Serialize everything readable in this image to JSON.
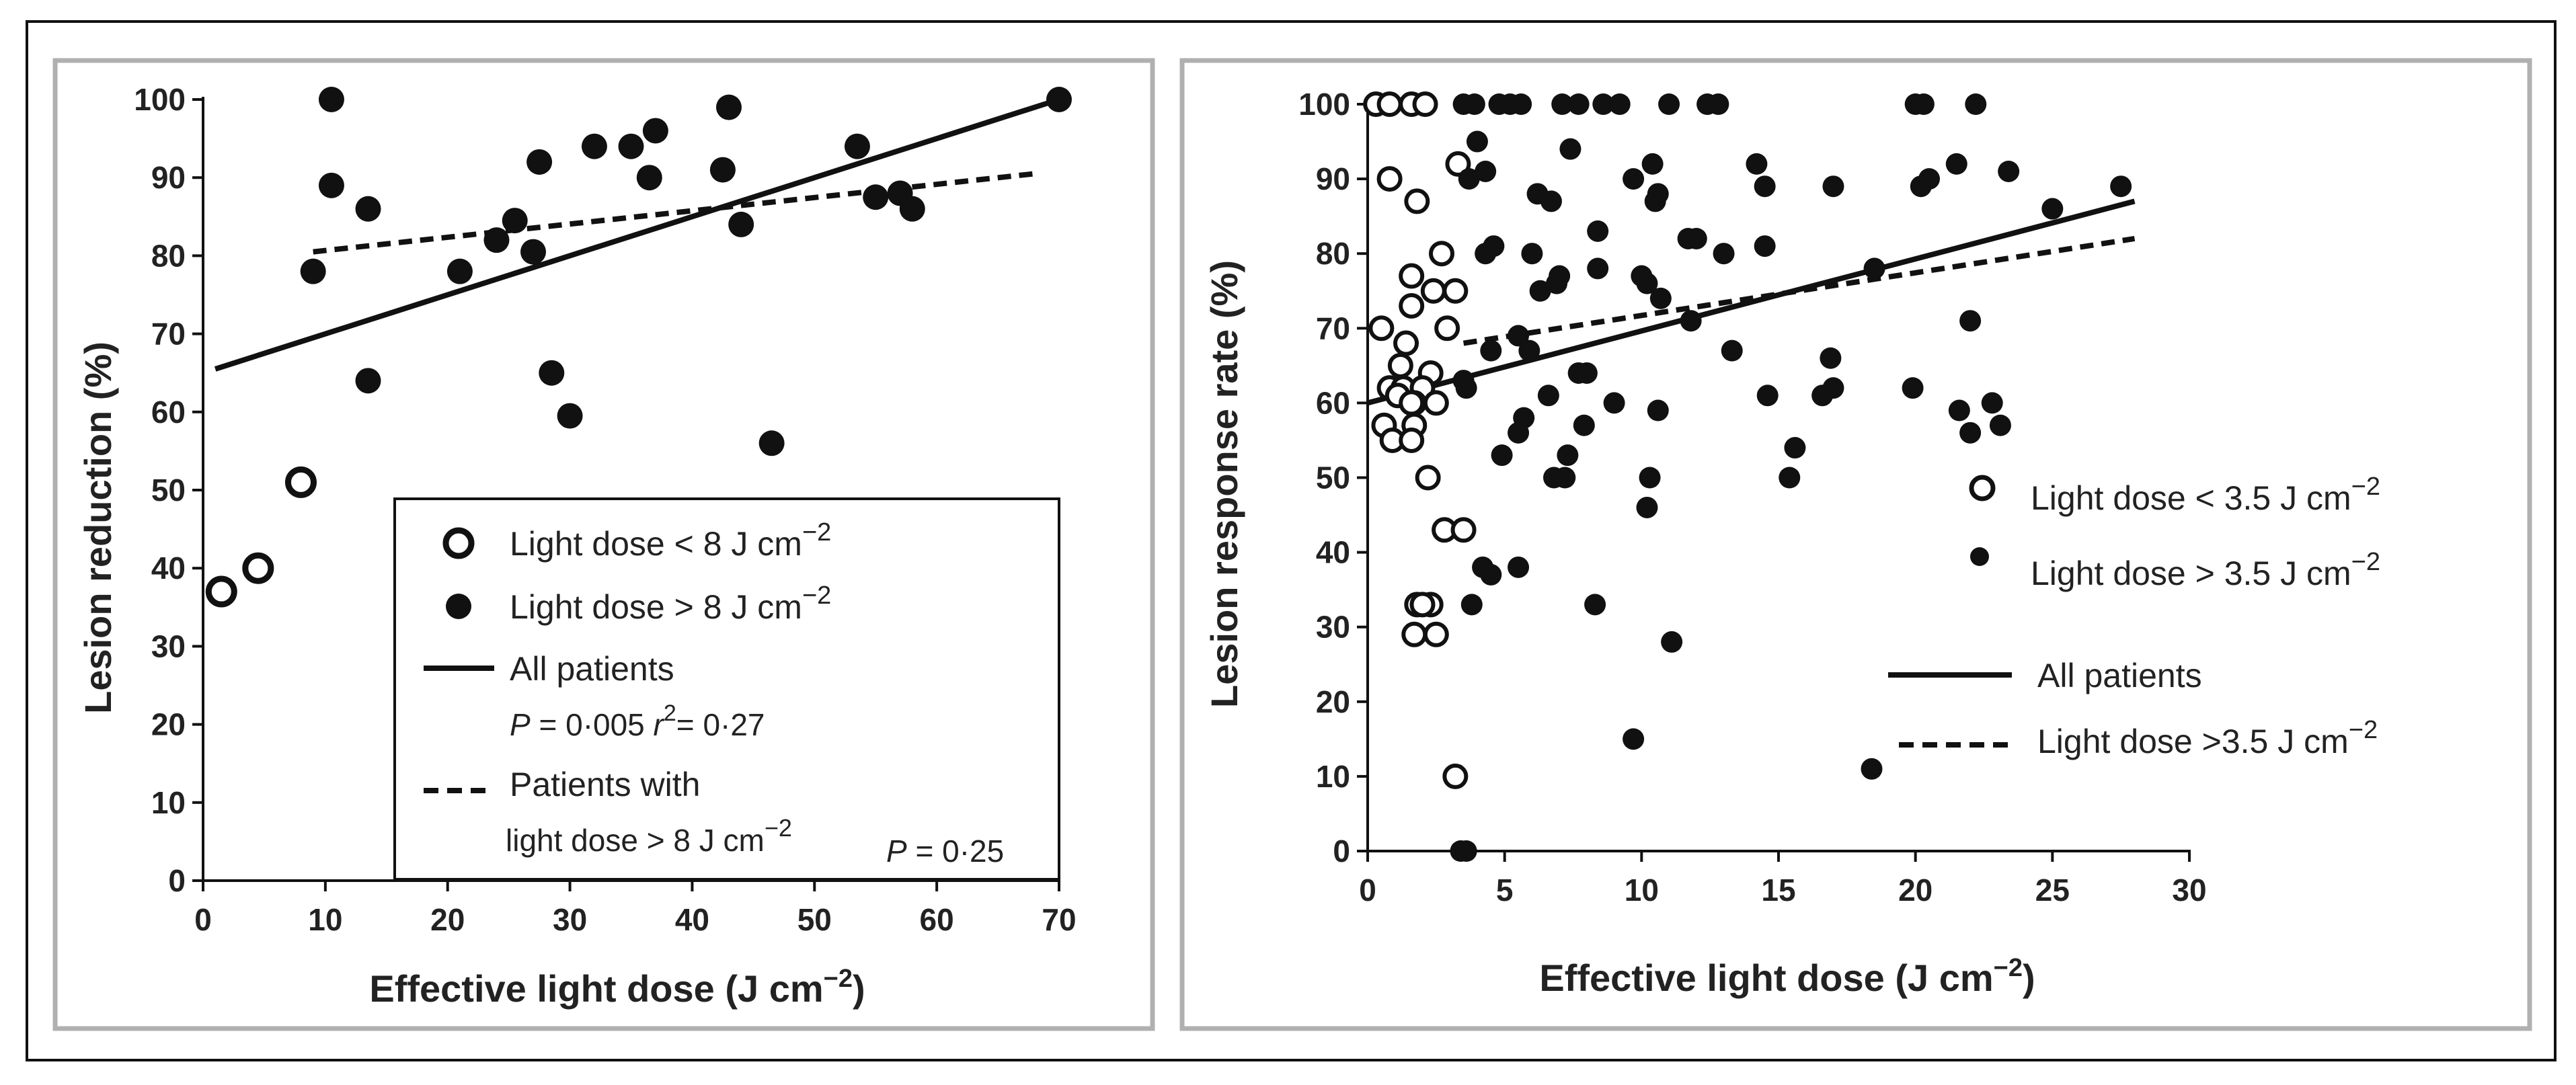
{
  "chart_data": [
    {
      "type": "scatter",
      "panel": "left",
      "xlabel": "Effective light dose (J cm",
      "xlabel_sup": "−2",
      "xlabel_close": ")",
      "ylabel": "Lesion reduction (%)",
      "xlim": [
        0,
        70
      ],
      "ylim": [
        0,
        100
      ],
      "xticks": [
        "0",
        "10",
        "20",
        "30",
        "40",
        "50",
        "60",
        "70"
      ],
      "yticks": [
        "0",
        "10",
        "20",
        "30",
        "40",
        "50",
        "60",
        "70",
        "80",
        "90",
        "100"
      ],
      "series": [
        {
          "name": "Light dose < 8 J cm−2",
          "marker": "open",
          "x": [
            1.5,
            4.5,
            8
          ],
          "y": [
            37,
            40,
            51
          ]
        },
        {
          "name": "Light dose > 8 J cm−2",
          "marker": "filled",
          "x": [
            9,
            10.5,
            10.5,
            13.5,
            13.5,
            21,
            24,
            25.5,
            27,
            27.5,
            28.5,
            30,
            32,
            35,
            36.5,
            37,
            42.5,
            43,
            44,
            46.5,
            53.5,
            55,
            57,
            58,
            70
          ],
          "y": [
            78,
            100,
            89,
            86,
            64,
            78,
            82,
            84.5,
            80.5,
            92,
            65,
            59.5,
            94,
            94,
            90,
            96,
            91,
            99,
            84,
            56,
            94,
            87.5,
            88,
            86,
            100
          ]
        }
      ],
      "fits": [
        {
          "name": "All patients",
          "style": "solid",
          "x": [
            1,
            70
          ],
          "y": [
            65.5,
            100
          ]
        },
        {
          "name": "Patients with light dose > 8 J cm−2",
          "style": "dashed",
          "x": [
            9,
            68
          ],
          "y": [
            80.5,
            90.5
          ]
        }
      ],
      "legend": {
        "position": "bottom-right",
        "open_pre": "Light dose < 8 J cm",
        "filled_pre": "Light dose > 8 J cm",
        "sup": "−2",
        "all_label": "All patients",
        "all_stat_p": "P",
        "all_stat_pval": " = 0·005  ",
        "all_stat_r": "r",
        "all_stat_rsup": "2",
        "all_stat_rval": "= 0·27",
        "sub_label_1": "Patients with",
        "sub_label_2": "light dose > 8 J cm",
        "sub_stat_p": "P",
        "sub_stat_pval": " = 0·25"
      }
    },
    {
      "type": "scatter",
      "panel": "right",
      "xlabel": "Effective light dose (J cm",
      "xlabel_sup": "−2",
      "xlabel_close": ")",
      "ylabel": "Lesion response rate (%)",
      "xlim": [
        0,
        30
      ],
      "ylim": [
        0,
        100
      ],
      "xticks": [
        "0",
        "5",
        "10",
        "15",
        "20",
        "25",
        "30"
      ],
      "yticks": [
        "0",
        "10",
        "20",
        "30",
        "40",
        "50",
        "60",
        "70",
        "80",
        "90",
        "100"
      ],
      "series": [
        {
          "name": "Light dose < 3.5 J cm−2",
          "marker": "open",
          "x": [
            0.3,
            0.8,
            1.6,
            2.1,
            3.3,
            0.8,
            1.8,
            2.7,
            1.6,
            2.4,
            3.2,
            1.6,
            0.5,
            1.4,
            2.9,
            1.2,
            0.8,
            2.3,
            1.3,
            2.0,
            1.7,
            1.1,
            1.6,
            0.6,
            1.7,
            2.5,
            0.9,
            1.6,
            2.2,
            2.8,
            3.5,
            2.3,
            1.8,
            2.0,
            1.7,
            2.5,
            3.2
          ],
          "y": [
            100,
            100,
            100,
            100,
            92,
            90,
            87,
            80,
            77,
            75,
            75,
            73,
            70,
            68,
            70,
            65,
            62,
            64,
            62,
            62,
            60,
            61,
            60,
            57,
            57,
            60,
            55,
            55,
            50,
            43,
            43,
            33,
            33,
            33,
            29,
            29,
            10
          ]
        },
        {
          "name": "Light dose > 3.5 J cm−2",
          "marker": "filled",
          "x": [
            3.5,
            3.9,
            4.8,
            5.2,
            5.6,
            7.1,
            7.7,
            8.6,
            9.2,
            11.0,
            12.4,
            12.8,
            20.0,
            20.3,
            22.2,
            4.0,
            3.7,
            4.3,
            6.2,
            6.7,
            7.4,
            9.7,
            10.4,
            10.6,
            14.2,
            14.5,
            17.0,
            20.2,
            21.5,
            23.4,
            27.5,
            4.3,
            4.6,
            6.0,
            7.0,
            8.4,
            10.0,
            10.5,
            12.0,
            13.0,
            14.5,
            18.5,
            6.3,
            6.9,
            10.2,
            11.7,
            16.9,
            22.0,
            5.5,
            5.9,
            8.4,
            10.7,
            11.8,
            3.6,
            4.5,
            6.6,
            7.7,
            9.0,
            13.3,
            17.0,
            20.5,
            21.6,
            3.5,
            5.7,
            5.5,
            7.3,
            8.0,
            10.6,
            14.6,
            16.6,
            22.8,
            23.1,
            4.9,
            7.2,
            7.9,
            15.6,
            6.8,
            10.3,
            15.4,
            10.2,
            22.0,
            4.2,
            4.5,
            5.5,
            3.8,
            8.3,
            11.1,
            9.7,
            18.4,
            3.4,
            3.6,
            25.0,
            19.9
          ],
          "y": [
            100,
            100,
            100,
            100,
            100,
            100,
            100,
            100,
            100,
            100,
            100,
            100,
            100,
            100,
            100,
            95,
            90,
            91,
            88,
            87,
            94,
            90,
            92,
            88,
            92,
            89,
            89,
            89,
            92,
            91,
            89,
            80,
            81,
            80,
            77,
            83,
            77,
            87,
            82,
            80,
            81,
            78,
            75,
            76,
            76,
            82,
            66,
            71,
            69,
            67,
            78,
            74,
            71,
            62,
            67,
            61,
            64,
            60,
            67,
            62,
            90,
            59,
            63,
            58,
            56,
            53,
            64,
            59,
            61,
            61,
            60,
            57,
            53,
            50,
            57,
            54,
            50,
            50,
            50,
            46,
            56,
            38,
            37,
            38,
            33,
            33,
            28,
            15,
            11,
            0,
            0,
            86,
            62
          ]
        }
      ],
      "fits": [
        {
          "name": "All patients",
          "style": "solid",
          "x": [
            0,
            28
          ],
          "y": [
            60,
            87
          ]
        },
        {
          "name": "Light dose >3.5 J cm−2",
          "style": "dashed",
          "x": [
            3.5,
            28
          ],
          "y": [
            68,
            82
          ]
        }
      ],
      "legend": {
        "position": "right",
        "open_pre": "Light dose < 3.5 J cm",
        "filled_pre": "Light dose > 3.5 J cm",
        "sup": "−2",
        "all_label": "All patients",
        "sub_label": "Light dose >3.5 J cm"
      }
    }
  ]
}
